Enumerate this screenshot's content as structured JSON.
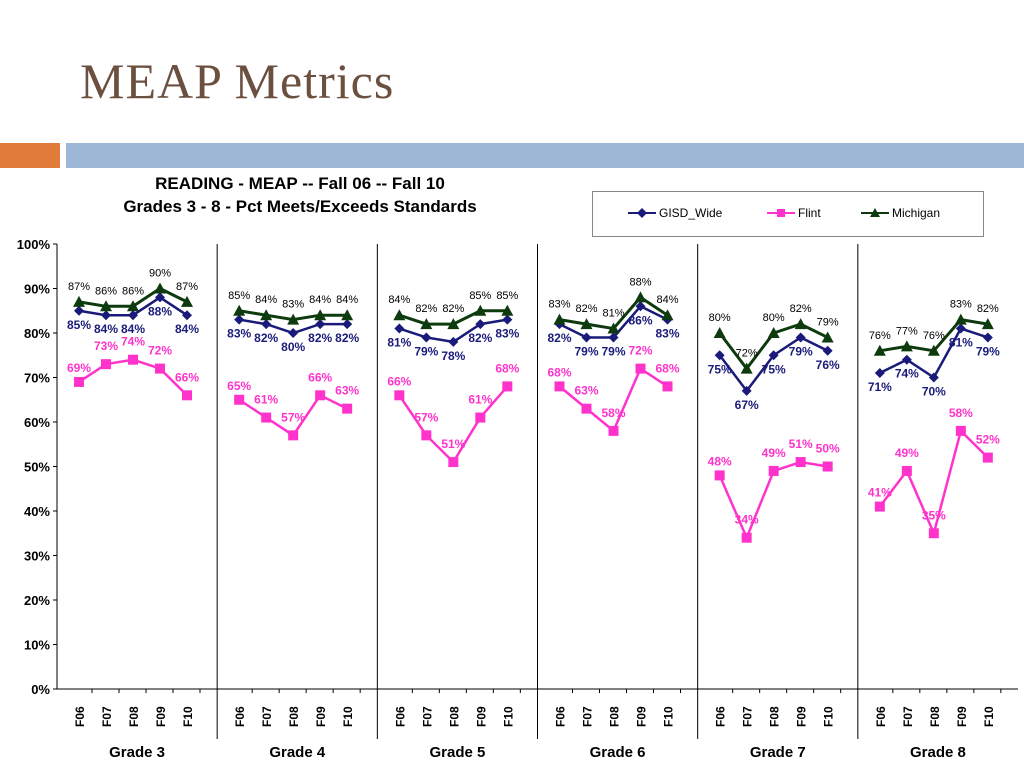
{
  "slide": {
    "title": "MEAP Metrics"
  },
  "colors": {
    "gisd": "#1a1a7a",
    "flint": "#ff33cc",
    "michigan": "#0d3b0d",
    "accent_orange": "#e07b39",
    "accent_blue": "#9fb7d6",
    "title": "#6b4f3f"
  },
  "chart_data": {
    "type": "line",
    "title": "READING - MEAP -- Fall 06 -- Fall 10",
    "subtitle": "Grades 3 - 8 - Pct Meets/Exceeds Standards",
    "ylim": [
      0,
      100
    ],
    "yticks": [
      "0%",
      "10%",
      "20%",
      "30%",
      "40%",
      "50%",
      "60%",
      "70%",
      "80%",
      "90%",
      "100%"
    ],
    "legend_position": "top-right",
    "groups": [
      {
        "label": "Grade 3",
        "categories": [
          "F06",
          "F07",
          "F08",
          "F09",
          "F10"
        ],
        "series": [
          {
            "name": "GISD_Wide",
            "values": [
              85,
              84,
              84,
              88,
              84
            ],
            "labels": [
              "85%",
              "84%",
              "84%",
              "88%",
              "84%"
            ]
          },
          {
            "name": "Flint",
            "values": [
              69,
              73,
              74,
              72,
              66
            ],
            "labels": [
              "69%",
              "73%",
              "74%",
              "72%",
              "66%"
            ]
          },
          {
            "name": "Michigan",
            "values": [
              87,
              86,
              86,
              90,
              87
            ],
            "labels": [
              "87%",
              "86%",
              "86%",
              "90%",
              "87%"
            ]
          }
        ]
      },
      {
        "label": "Grade 4",
        "categories": [
          "F06",
          "F07",
          "F08",
          "F09",
          "F10"
        ],
        "series": [
          {
            "name": "GISD_Wide",
            "values": [
              83,
              82,
              80,
              82,
              82
            ],
            "labels": [
              "83%",
              "82%",
              "80%",
              "82%",
              "82%"
            ]
          },
          {
            "name": "Flint",
            "values": [
              65,
              61,
              57,
              66,
              63
            ],
            "labels": [
              "65%",
              "61%",
              "57%",
              "66%",
              "63%"
            ]
          },
          {
            "name": "Michigan",
            "values": [
              85,
              84,
              83,
              84,
              84
            ],
            "labels": [
              "85%",
              "84%",
              "83%",
              "84%",
              "84%"
            ]
          }
        ]
      },
      {
        "label": "Grade 5",
        "categories": [
          "F06",
          "F07",
          "F08",
          "F09",
          "F10"
        ],
        "series": [
          {
            "name": "GISD_Wide",
            "values": [
              81,
              79,
              78,
              82,
              83
            ],
            "labels": [
              "81%",
              "79%",
              "78%",
              "82%",
              "83%"
            ]
          },
          {
            "name": "Flint",
            "values": [
              66,
              57,
              51,
              61,
              68
            ],
            "labels": [
              "66%",
              "57%",
              "51%",
              "61%",
              "68%"
            ]
          },
          {
            "name": "Michigan",
            "values": [
              84,
              82,
              82,
              85,
              85
            ],
            "labels": [
              "84%",
              "82%",
              "82%",
              "85%",
              "85%"
            ]
          }
        ]
      },
      {
        "label": "Grade 6",
        "categories": [
          "F06",
          "F07",
          "F08",
          "F09",
          "F10"
        ],
        "series": [
          {
            "name": "GISD_Wide",
            "values": [
              82,
              79,
              79,
              86,
              83
            ],
            "labels": [
              "82%",
              "79%",
              "79%",
              "86%",
              "83%"
            ]
          },
          {
            "name": "Flint",
            "values": [
              68,
              63,
              58,
              72,
              68
            ],
            "labels": [
              "68%",
              "63%",
              "58%",
              "72%",
              "68%"
            ]
          },
          {
            "name": "Michigan",
            "values": [
              83,
              82,
              81,
              88,
              84
            ],
            "labels": [
              "83%",
              "82%",
              "81%",
              "88%",
              "84%"
            ]
          }
        ]
      },
      {
        "label": "Grade 7",
        "categories": [
          "F06",
          "F07",
          "F08",
          "F09",
          "F10"
        ],
        "series": [
          {
            "name": "GISD_Wide",
            "values": [
              75,
              67,
              75,
              79,
              76
            ],
            "labels": [
              "75%",
              "67%",
              "75%",
              "79%",
              "76%"
            ]
          },
          {
            "name": "Flint",
            "values": [
              48,
              34,
              49,
              51,
              50
            ],
            "labels": [
              "48%",
              "34%",
              "49%",
              "51%",
              "50%"
            ]
          },
          {
            "name": "Michigan",
            "values": [
              80,
              72,
              80,
              82,
              79
            ],
            "labels": [
              "80%",
              "72%",
              "80%",
              "82%",
              "79%"
            ]
          }
        ]
      },
      {
        "label": "Grade 8",
        "categories": [
          "F06",
          "F07",
          "F08",
          "F09",
          "F10"
        ],
        "series": [
          {
            "name": "GISD_Wide",
            "values": [
              71,
              74,
              70,
              81,
              79
            ],
            "labels": [
              "71%",
              "74%",
              "70%",
              "81%",
              "79%"
            ]
          },
          {
            "name": "Flint",
            "values": [
              41,
              49,
              35,
              58,
              52
            ],
            "labels": [
              "41%",
              "49%",
              "35%",
              "58%",
              "52%"
            ]
          },
          {
            "name": "Michigan",
            "values": [
              76,
              77,
              76,
              83,
              82
            ],
            "labels": [
              "76%",
              "77%",
              "76%",
              "83%",
              "82%"
            ]
          }
        ]
      }
    ]
  }
}
